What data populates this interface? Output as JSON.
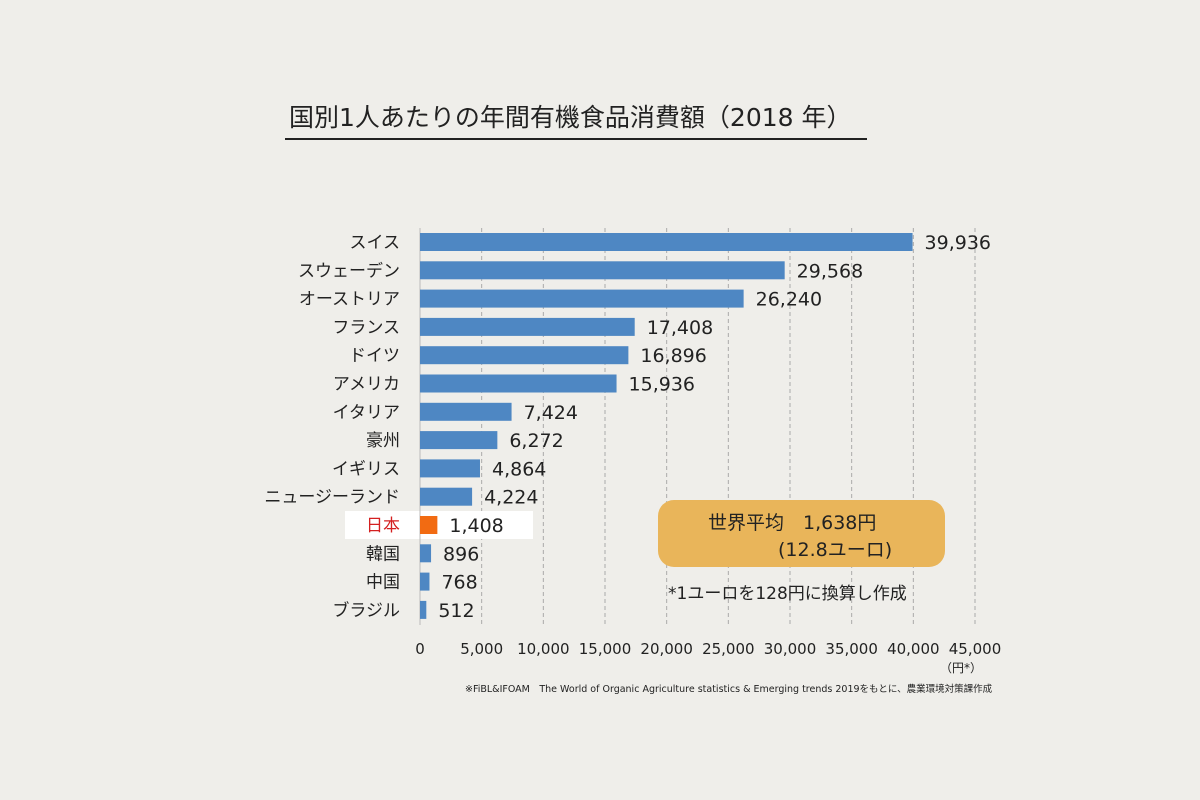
{
  "chart_data": {
    "type": "bar",
    "orientation": "horizontal",
    "title": "国別1人あたりの年間有機食品消費額（2018 年）",
    "categories": [
      "スイス",
      "スウェーデン",
      "オーストリア",
      "フランス",
      "ドイツ",
      "アメリカ",
      "イタリア",
      "豪州",
      "イギリス",
      "ニュージーランド",
      "日本",
      "韓国",
      "中国",
      "ブラジル"
    ],
    "values": [
      39936,
      29568,
      26240,
      17408,
      16896,
      15936,
      7424,
      6272,
      4864,
      4224,
      1408,
      896,
      768,
      512
    ],
    "value_labels": [
      "39,936",
      "29,568",
      "26,240",
      "17,408",
      "16,896",
      "15,936",
      "7,424",
      "6,272",
      "4,864",
      "4,224",
      "1,408",
      "896",
      "768",
      "512"
    ],
    "highlight_category": "日本",
    "xlim": [
      0,
      45000
    ],
    "x_ticks": [
      "0",
      "5,000",
      "10,000",
      "15,000",
      "20,000",
      "25,000",
      "30,000",
      "35,000",
      "40,000",
      "45,000"
    ],
    "x_unit": "（円*）",
    "grid": "vertical dashed",
    "colors": {
      "bar": "#4e87c3",
      "highlight_bar": "#f26b12",
      "highlight_label": "#d42020",
      "average_box": "#e9b55a"
    }
  },
  "annotations": {
    "world_average_line1": "世界平均　1,638円",
    "world_average_line2": "(12.8ユーロ)",
    "conversion_note": "*1ユーロを128円に換算し作成",
    "source": "※FiBL&IFOAM　The World of Organic Agriculture statistics & Emerging trends 2019をもとに、農業環境対策課作成"
  }
}
